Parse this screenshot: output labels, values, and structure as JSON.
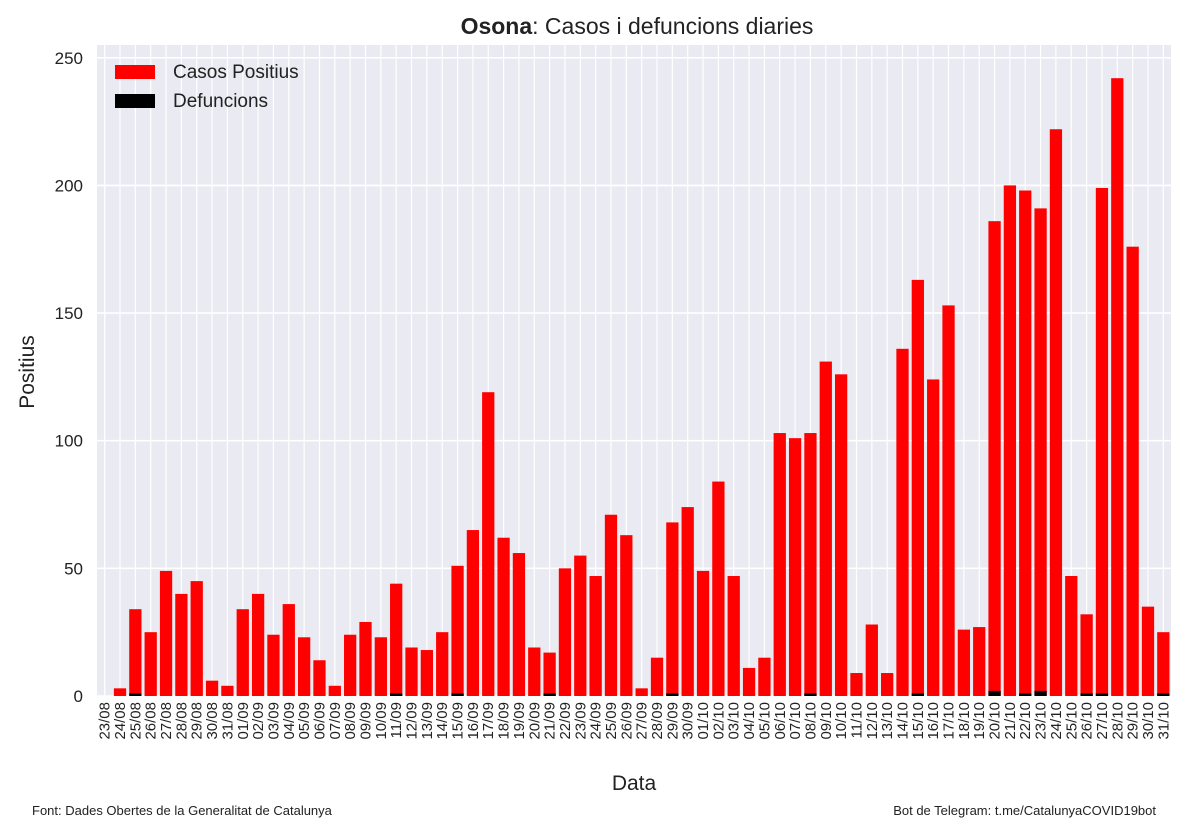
{
  "chart_data": {
    "type": "bar",
    "title": {
      "bold": "Osona",
      "rest": ": Casos i defuncions diaries"
    },
    "xlabel": "Data",
    "ylabel": "Positius",
    "source": "Font: Dades Obertes de la Generalitat de Catalunya",
    "credit": "Bot de Telegram: t.me/CatalunyaCOVID19bot",
    "categories": [
      "23/08",
      "24/08",
      "25/08",
      "26/08",
      "27/08",
      "28/08",
      "29/08",
      "30/08",
      "31/08",
      "01/09",
      "02/09",
      "03/09",
      "04/09",
      "05/09",
      "06/09",
      "07/09",
      "08/09",
      "09/09",
      "10/09",
      "11/09",
      "12/09",
      "13/09",
      "14/09",
      "15/09",
      "16/09",
      "17/09",
      "18/09",
      "19/09",
      "20/09",
      "21/09",
      "22/09",
      "23/09",
      "24/09",
      "25/09",
      "26/09",
      "27/09",
      "28/09",
      "29/09",
      "30/09",
      "01/10",
      "02/10",
      "03/10",
      "04/10",
      "05/10",
      "06/10",
      "07/10",
      "08/10",
      "09/10",
      "10/10",
      "11/10",
      "12/10",
      "13/10",
      "14/10",
      "15/10",
      "16/10",
      "17/10",
      "18/10",
      "19/10",
      "20/10",
      "21/10",
      "22/10",
      "23/10",
      "24/10",
      "25/10",
      "26/10",
      "27/10",
      "28/10",
      "29/10",
      "30/10",
      "31/10"
    ],
    "series": [
      {
        "name": "Casos Positius",
        "color": "#ff0000",
        "values": [
          0,
          3,
          34,
          25,
          49,
          40,
          45,
          6,
          4,
          34,
          40,
          24,
          36,
          23,
          14,
          4,
          24,
          29,
          23,
          44,
          19,
          18,
          25,
          51,
          65,
          119,
          62,
          56,
          19,
          17,
          50,
          55,
          47,
          71,
          63,
          3,
          15,
          68,
          74,
          49,
          84,
          47,
          11,
          15,
          103,
          101,
          103,
          131,
          126,
          9,
          28,
          9,
          136,
          163,
          124,
          153,
          26,
          27,
          186,
          200,
          198,
          191,
          222,
          47,
          32,
          199,
          242,
          176,
          35,
          25
        ]
      },
      {
        "name": "Defuncions",
        "color": "#000000",
        "values": [
          0,
          0,
          1,
          0,
          0,
          0,
          0,
          0,
          0,
          0,
          0,
          0,
          0,
          0,
          0,
          0,
          0,
          0,
          0,
          1,
          0,
          0,
          0,
          1,
          0,
          0,
          0,
          0,
          0,
          1,
          0,
          0,
          0,
          0,
          0,
          0,
          0,
          1,
          0,
          0,
          0,
          0,
          0,
          0,
          0,
          0,
          1,
          0,
          0,
          0,
          0,
          0,
          0,
          1,
          0,
          0,
          0,
          0,
          2,
          0,
          1,
          2,
          0,
          0,
          1,
          1,
          0,
          0,
          0,
          1
        ]
      }
    ],
    "ylim": [
      0,
      255
    ],
    "yticks": [
      0,
      50,
      100,
      150,
      200,
      250
    ],
    "grid": true,
    "legend": "upper left"
  }
}
